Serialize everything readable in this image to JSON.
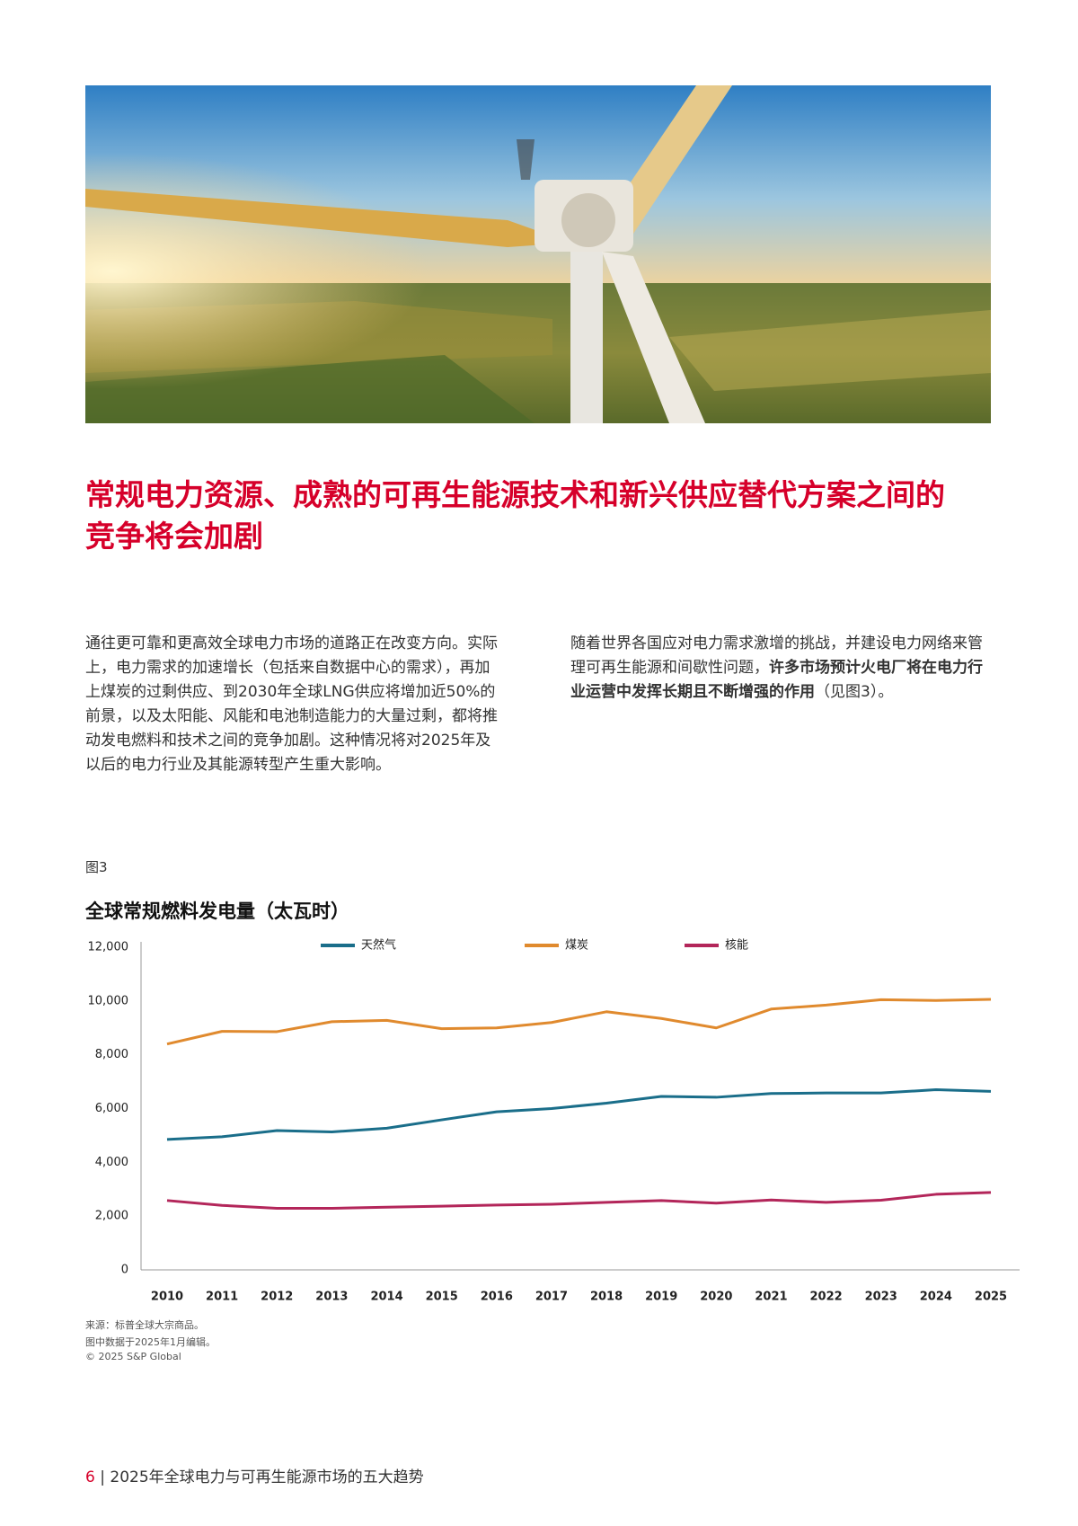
{
  "heading": "常规电力资源、成熟的可再生能源技术和新兴供应替代方案之间的竞争将会加剧",
  "body": {
    "paragraph_1": "通往更可靠和更高效全球电力市场的道路正在改变方向。实际上，电力需求的加速增长（包括来自数据中心的需求），再加上煤炭的过剩供应、到2030年全球LNG供应将增加近50%的前景，以及太阳能、风能和电池制造能力的大量过剩，都将推动发电燃料和技术之间的竞争加剧。这种情况将对2025年及以后的电力行业及其能源转型产生重大影响。",
    "paragraph_2": [
      "随着世界各国应对电力需求激增的挑战，并建设电力网络来管理可再生能源和间歇性问题，",
      "许多市场预计火电厂将在电力行业运营中发挥长期且不断增强的作用",
      "（见图3）。"
    ]
  },
  "figure_label": "图3",
  "chart_data": {
    "type": "line",
    "title": "全球常规燃料发电量（太瓦时）",
    "categories": [
      "2010",
      "2011",
      "2012",
      "2013",
      "2014",
      "2015",
      "2016",
      "2017",
      "2018",
      "2019",
      "2020",
      "2021",
      "2022",
      "2023",
      "2024",
      "2025"
    ],
    "series": [
      {
        "name": "天然气",
        "color": "#1a6e8a",
        "values": [
          4850,
          4950,
          5180,
          5130,
          5270,
          5580,
          5880,
          6000,
          6200,
          6450,
          6420,
          6560,
          6580,
          6580,
          6700,
          6640
        ]
      },
      {
        "name": "煤炭",
        "color": "#e08a2e",
        "values": [
          8400,
          8870,
          8860,
          9230,
          9280,
          8970,
          9000,
          9200,
          9600,
          9350,
          9000,
          9700,
          9850,
          10050,
          10020,
          10060
        ]
      },
      {
        "name": "核能",
        "color": "#b3265a",
        "values": [
          2580,
          2400,
          2290,
          2290,
          2330,
          2370,
          2410,
          2440,
          2510,
          2580,
          2480,
          2600,
          2510,
          2590,
          2810,
          2880
        ]
      }
    ],
    "ylim": [
      0,
      12000
    ],
    "yticks": [
      0,
      {
        "value": 2000,
        "label": "2,000"
      },
      {
        "value": 4000,
        "label": "4,000"
      },
      {
        "value": 6000,
        "label": "6,000"
      },
      {
        "value": 8000,
        "label": "8,000"
      },
      {
        "value": 10000,
        "label": "10,000"
      },
      {
        "value": 12000,
        "label": "12,000"
      }
    ]
  },
  "source_notes": [
    "来源：标普全球大宗商品。",
    "图中数据于2025年1月编辑。",
    "© 2025 S&P Global"
  ],
  "footer": {
    "page_number": "6",
    "separator": "|",
    "title": "2025年全球电力与可再生能源市场的五大趋势"
  }
}
